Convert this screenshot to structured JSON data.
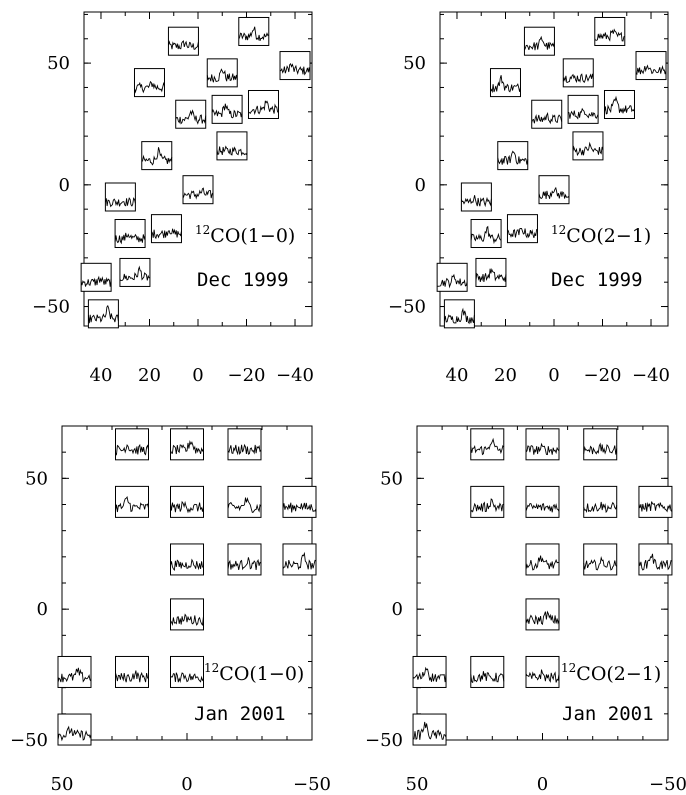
{
  "chart_data": [
    {
      "type": "scatter",
      "title": "",
      "line": "12CO(1-0)",
      "line_sup": "12",
      "line_main": "CO(1−0)",
      "epoch": "Dec 1999",
      "xlim": [
        47,
        -47
      ],
      "ylim": [
        -58,
        71
      ],
      "xticks": [
        40,
        20,
        0,
        -20,
        -40
      ],
      "xtick_labels": [
        "40",
        "20",
        "0",
        "−20",
        "−40"
      ],
      "yticks": [
        50,
        0,
        -50
      ],
      "ytick_labels": [
        "50",
        "0",
        "−50"
      ],
      "xlabel": "",
      "ylabel": "",
      "grid": false,
      "spectra_positions": [
        {
          "x": 6,
          "y": 59
        },
        {
          "x": -23,
          "y": 63
        },
        {
          "x": -40,
          "y": 49
        },
        {
          "x": 20,
          "y": 42
        },
        {
          "x": -10,
          "y": 46
        },
        {
          "x": 3,
          "y": 29
        },
        {
          "x": -12,
          "y": 31
        },
        {
          "x": -27,
          "y": 33
        },
        {
          "x": 17,
          "y": 12
        },
        {
          "x": -14,
          "y": 16
        },
        {
          "x": 32,
          "y": -5
        },
        {
          "x": 0,
          "y": -2
        },
        {
          "x": 28,
          "y": -20
        },
        {
          "x": 13,
          "y": -18
        },
        {
          "x": 42,
          "y": -38
        },
        {
          "x": 26,
          "y": -36
        },
        {
          "x": 39,
          "y": -53
        }
      ]
    },
    {
      "type": "scatter",
      "title": "",
      "line": "12CO(2-1)",
      "line_sup": "12",
      "line_main": "CO(2−1)",
      "epoch": "Dec 1999",
      "xlim": [
        47,
        -47
      ],
      "ylim": [
        -58,
        71
      ],
      "xticks": [
        40,
        20,
        0,
        -20,
        -40
      ],
      "xtick_labels": [
        "40",
        "20",
        "0",
        "−20",
        "−40"
      ],
      "yticks": [
        50,
        0,
        -50
      ],
      "ytick_labels": [
        "50",
        "0",
        "−50"
      ],
      "xlabel": "",
      "ylabel": "",
      "grid": false,
      "spectra_positions": [
        {
          "x": 6,
          "y": 59
        },
        {
          "x": -23,
          "y": 63
        },
        {
          "x": -40,
          "y": 49
        },
        {
          "x": 20,
          "y": 42
        },
        {
          "x": -10,
          "y": 46
        },
        {
          "x": 3,
          "y": 29
        },
        {
          "x": -12,
          "y": 31
        },
        {
          "x": -27,
          "y": 33
        },
        {
          "x": 17,
          "y": 12
        },
        {
          "x": -14,
          "y": 16
        },
        {
          "x": 32,
          "y": -5
        },
        {
          "x": 0,
          "y": -2
        },
        {
          "x": 28,
          "y": -20
        },
        {
          "x": 13,
          "y": -18
        },
        {
          "x": 42,
          "y": -38
        },
        {
          "x": 26,
          "y": -36
        },
        {
          "x": 39,
          "y": -53
        }
      ]
    },
    {
      "type": "scatter",
      "title": "",
      "line": "12CO(1-0)",
      "line_sup": "12",
      "line_main": "CO(1−0)",
      "epoch": "Jan 2001",
      "xlim": [
        50,
        -50
      ],
      "ylim": [
        -50,
        70
      ],
      "xticks": [
        50,
        0,
        -50
      ],
      "xtick_labels": [
        "50",
        "0",
        "−50"
      ],
      "yticks": [
        50,
        0,
        -50
      ],
      "ytick_labels": [
        "50",
        "0",
        "−50"
      ],
      "xlabel": "",
      "ylabel": "",
      "grid": false,
      "spectra_positions": [
        {
          "x": 22,
          "y": 63
        },
        {
          "x": 0,
          "y": 63
        },
        {
          "x": -23,
          "y": 63
        },
        {
          "x": 22,
          "y": 41
        },
        {
          "x": 0,
          "y": 41
        },
        {
          "x": -23,
          "y": 41
        },
        {
          "x": -45,
          "y": 41
        },
        {
          "x": 0,
          "y": 19
        },
        {
          "x": -23,
          "y": 19
        },
        {
          "x": -45,
          "y": 19
        },
        {
          "x": 0,
          "y": -2
        },
        {
          "x": 45,
          "y": -24
        },
        {
          "x": 22,
          "y": -24
        },
        {
          "x": 0,
          "y": -24
        },
        {
          "x": 45,
          "y": -46
        }
      ]
    },
    {
      "type": "scatter",
      "title": "",
      "line": "12CO(2-1)",
      "line_sup": "12",
      "line_main": "CO(2−1)",
      "epoch": "Jan 2001",
      "xlim": [
        50,
        -50
      ],
      "ylim": [
        -50,
        70
      ],
      "xticks": [
        50,
        0,
        -50
      ],
      "xtick_labels": [
        "50",
        "0",
        "−50"
      ],
      "yticks": [
        50,
        0,
        -50
      ],
      "ytick_labels": [
        "50",
        "0",
        "−50"
      ],
      "xlabel": "",
      "ylabel": "",
      "grid": false,
      "spectra_positions": [
        {
          "x": 22,
          "y": 63
        },
        {
          "x": 0,
          "y": 63
        },
        {
          "x": -23,
          "y": 63
        },
        {
          "x": 22,
          "y": 41
        },
        {
          "x": 0,
          "y": 41
        },
        {
          "x": -23,
          "y": 41
        },
        {
          "x": -45,
          "y": 41
        },
        {
          "x": 0,
          "y": 19
        },
        {
          "x": -23,
          "y": 19
        },
        {
          "x": -45,
          "y": 19
        },
        {
          "x": 0,
          "y": -2
        },
        {
          "x": 45,
          "y": -24
        },
        {
          "x": 22,
          "y": -24
        },
        {
          "x": 0,
          "y": -24
        },
        {
          "x": 45,
          "y": -46
        }
      ]
    }
  ]
}
